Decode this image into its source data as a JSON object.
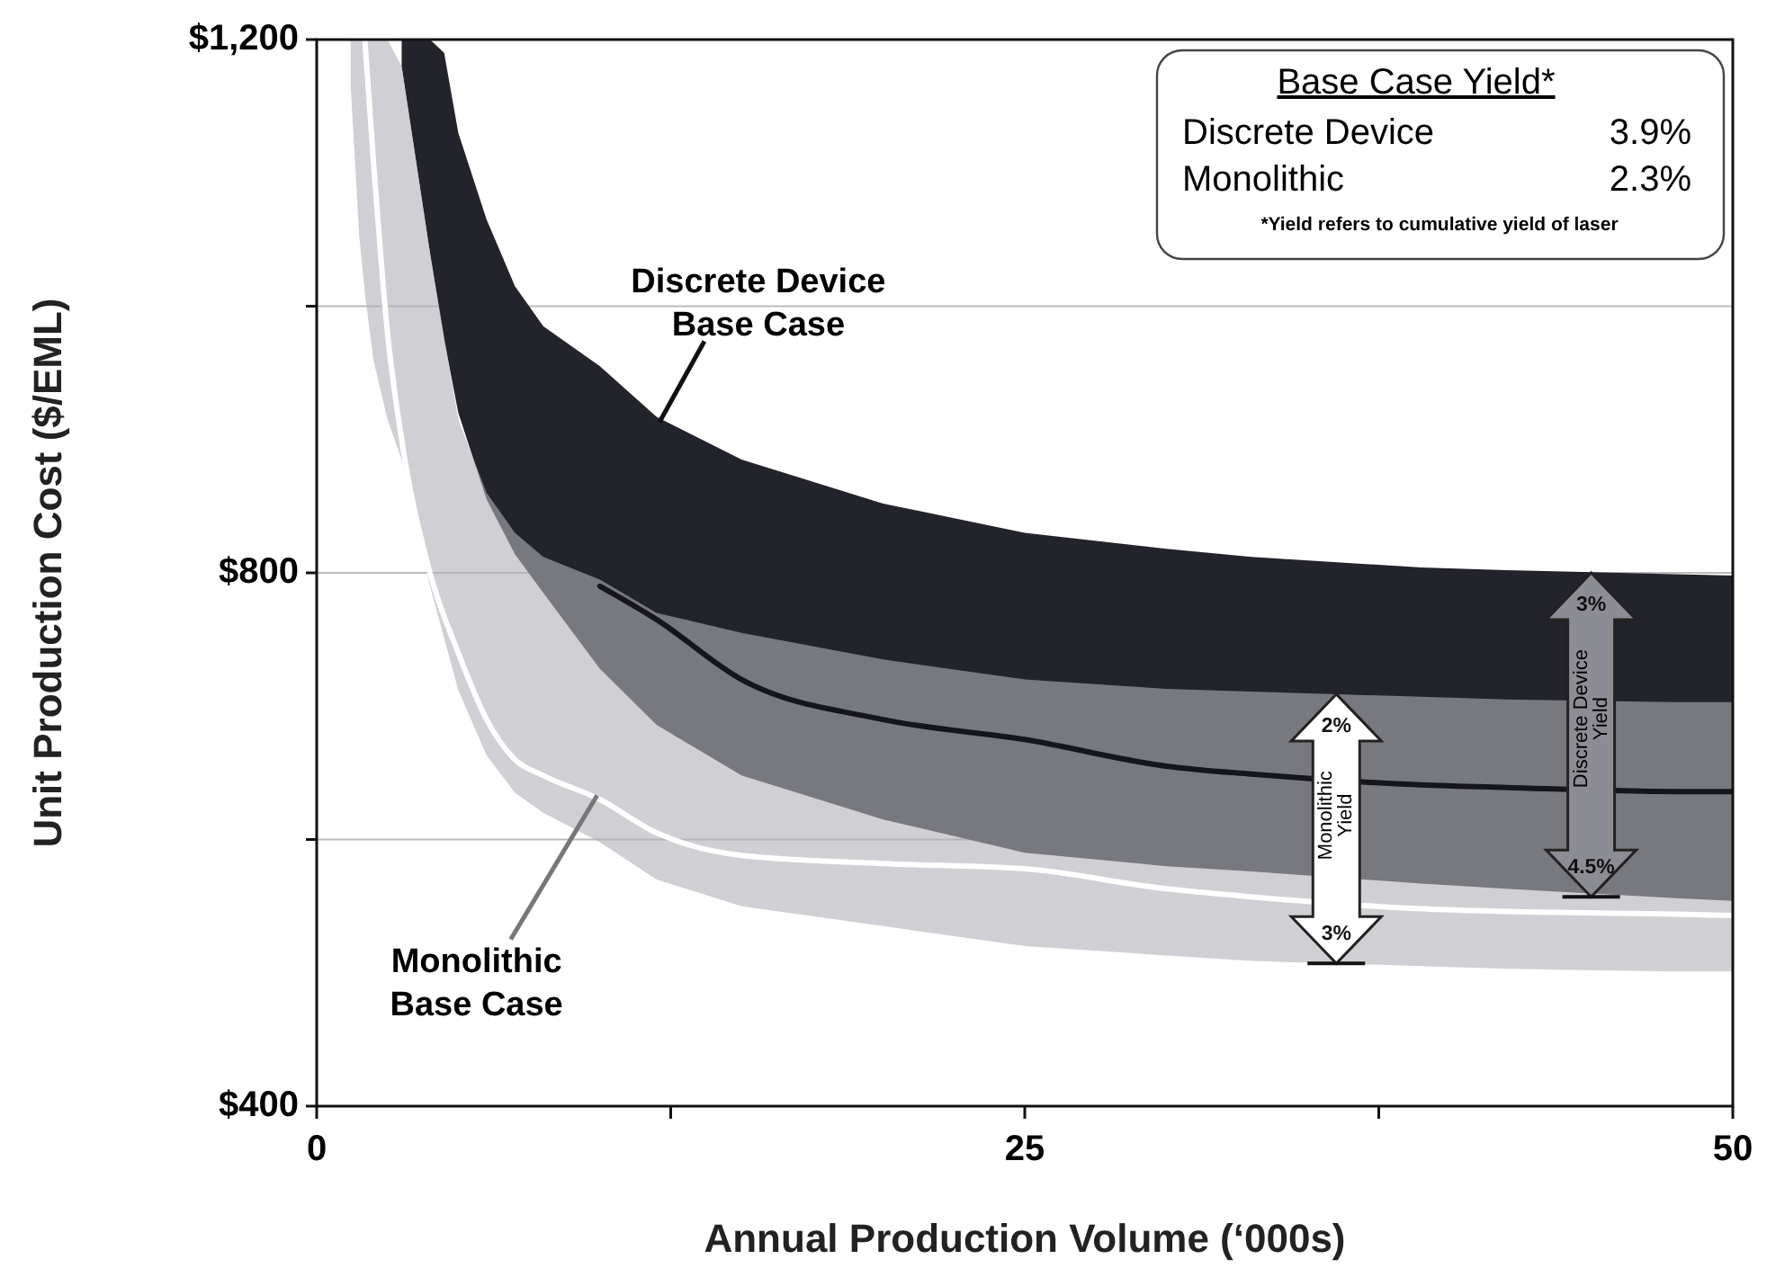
{
  "chart_data": {
    "type": "line",
    "xlabel": "Annual Production Volume (‘000s)",
    "ylabel": "Unit Production Cost ($/EML)",
    "xlim": [
      0,
      50
    ],
    "ylim": [
      400,
      1200
    ],
    "xticks": [
      0,
      {
        "value": 12.5,
        "label": null
      },
      25,
      {
        "value": 37.5,
        "label": null
      },
      50
    ],
    "yticks": [
      {
        "value": 400,
        "label": "$400"
      },
      {
        "value": 600,
        "label": null
      },
      {
        "value": 800,
        "label": "$800"
      },
      {
        "value": 1000,
        "label": null
      },
      {
        "value": 1200,
        "label": "$1,200"
      }
    ],
    "grid": "y",
    "series": [
      {
        "color": "#15151c",
        "x": [
          3,
          4,
          4.5,
          5,
          6,
          7,
          8,
          10,
          12,
          15,
          20,
          25,
          30,
          33,
          39,
          42,
          48,
          50
        ],
        "values": [
          null,
          null,
          null,
          null,
          null,
          null,
          null,
          790,
          765,
          720,
          690,
          675,
          655,
          649,
          641,
          639,
          636,
          636
        ],
        "upper": [
          1200,
          1200,
          1190,
          1130,
          1065,
          1015,
          985,
          955,
          917,
          885,
          852,
          830,
          818,
          812,
          804,
          802,
          799,
          798
        ],
        "lower": [
          1180,
          1040,
          975,
          920,
          855,
          814,
          785,
          728,
          686,
          648,
          615,
          590,
          580,
          576,
          567,
          563,
          556,
          554
        ]
      },
      {
        "color": "#ffffff",
        "x": [
          1.2,
          1.5,
          1.7,
          2,
          2.5,
          3,
          4,
          5,
          6,
          7,
          8,
          10,
          12,
          15,
          20,
          25,
          30,
          33,
          39,
          42,
          48,
          50
        ],
        "values": [
          null,
          null,
          1200,
          1110,
          980,
          900,
          800,
          740,
          690,
          660,
          648,
          630,
          605,
          588,
          582,
          578,
          563,
          557,
          548,
          546,
          544,
          543
        ],
        "upper": [
          1200,
          1200,
          1200,
          1200,
          1200,
          1180,
          1040,
          915,
          860,
          830,
          812,
          795,
          770,
          755,
          735,
          720,
          713,
          711,
          707,
          705,
          703,
          703
        ],
        "lower": [
          1165,
          1053,
          1010,
          960,
          915,
          885,
          790,
          712,
          663,
          635,
          620,
          598,
          570,
          550,
          535,
          520,
          513,
          509,
          505,
          503,
          501,
          501
        ]
      }
    ],
    "annotations": [
      "Base Case Yield*",
      "Discrete Device",
      "3.9%",
      "Monolithic",
      "2.3%",
      "*Yield refers to cumulative yield of laser",
      {
        "text": "Discrete Device\nBase Case",
        "x": 12.1,
        "y": 913
      },
      {
        "text": "Monolithic\nBase Case",
        "x": 9.9,
        "y": 633
      },
      {
        "text": "2%",
        "x": 36,
        "y": 709
      },
      {
        "text": "3%",
        "x": 36,
        "y": 507
      },
      "Monolithic\nYield",
      {
        "text": "3%",
        "x": 45,
        "y": 800
      },
      {
        "text": "4.5%",
        "x": 45,
        "y": 557
      },
      "Discrete Device\nYield"
    ]
  }
}
